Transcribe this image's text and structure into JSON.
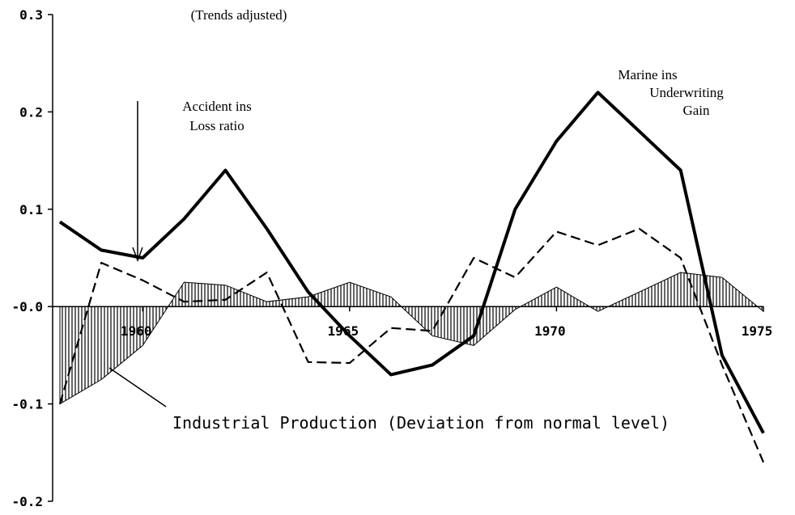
{
  "chart_data": {
    "type": "line",
    "x": [
      1958,
      1959,
      1960,
      1961,
      1962,
      1963,
      1964,
      1965,
      1966,
      1967,
      1968,
      1969,
      1970,
      1971,
      1972,
      1973,
      1974,
      1975
    ],
    "series": [
      {
        "color": "#000000",
        "style": "solid",
        "values": [
          0.087,
          0.058,
          0.05,
          0.09,
          0.14,
          0.08,
          0.015,
          -0.03,
          -0.07,
          -0.06,
          -0.03,
          0.1,
          0.17,
          0.22,
          0.18,
          0.14,
          -0.05,
          -0.13
        ]
      },
      {
        "color": "#000000",
        "style": "dashed",
        "values": [
          -0.1,
          0.045,
          0.027,
          0.005,
          0.007,
          0.035,
          -0.057,
          -0.058,
          -0.022,
          -0.025,
          0.05,
          0.03,
          0.077,
          0.063,
          0.08,
          0.05,
          -0.06,
          -0.16
        ]
      },
      {
        "color": "#000000",
        "style": "hatched-area",
        "values": [
          -0.1,
          -0.075,
          -0.04,
          0.025,
          0.022,
          0.005,
          0.01,
          0.025,
          0.01,
          -0.03,
          -0.04,
          -0.003,
          0.02,
          -0.005,
          0.015,
          0.035,
          0.03,
          -0.005
        ]
      }
    ],
    "annotations": [
      {
        "lines": [
          "(Trends adjusted)"
        ]
      },
      {
        "lines": [
          "Accident ins",
          "Loss ratio"
        ]
      },
      {
        "lines": [
          "Marine ins",
          "Underwriting",
          "Gain"
        ]
      },
      {
        "lines": [
          "Industrial Production  (Deviation from normal level)"
        ]
      }
    ],
    "xlim": [
      1958,
      1975
    ],
    "xticks": [
      1960,
      1965,
      1970,
      1975
    ],
    "ylim": [
      -0.2,
      0.3
    ],
    "yticks": [
      {
        "value": -0.2,
        "label": "-0.2"
      },
      -0.1,
      {
        "value": 0,
        "label": "-0.0"
      },
      0.1,
      0.2,
      0.3
    ],
    "grid": false
  }
}
